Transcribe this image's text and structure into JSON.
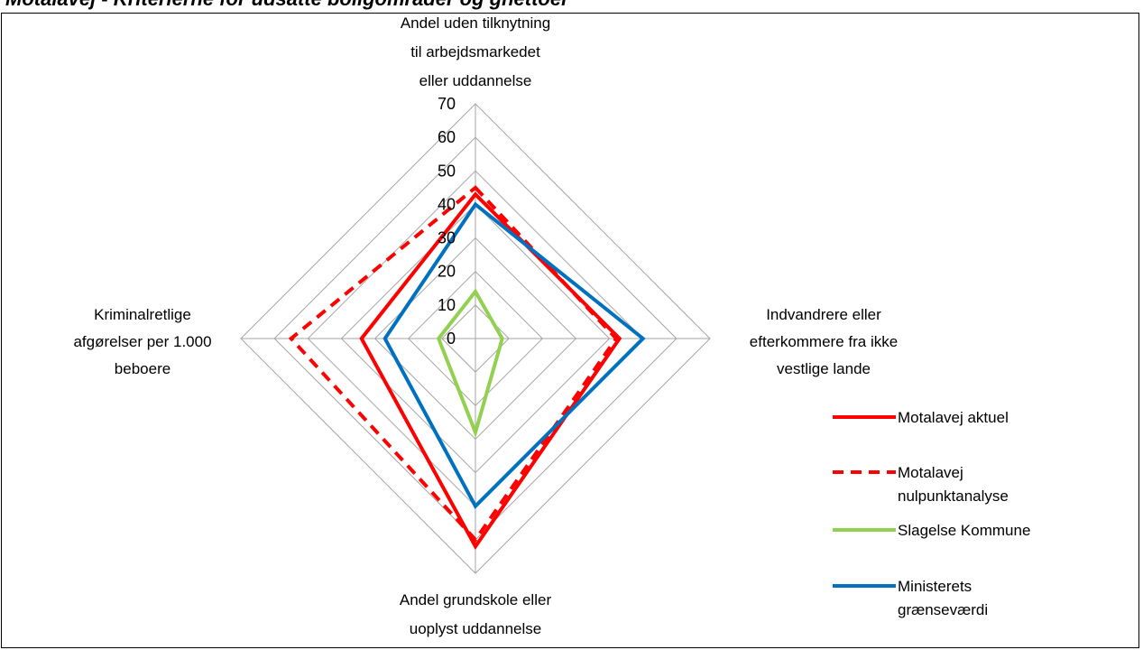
{
  "header": {
    "cut_title": "Motalavej - Kriterierne for udsatte boligområder og ghettoer"
  },
  "chart_data": {
    "type": "radar",
    "title": "",
    "axes": [
      {
        "lines": [
          "Andel uden tilknytning",
          "til arbejdsmarkedet",
          "eller uddannelse"
        ]
      },
      {
        "lines": [
          "Indvandrere eller",
          "efterkommere fra ikke",
          "vestlige lande"
        ]
      },
      {
        "lines": [
          "Andel grundskole eller",
          "uoplyst uddannelse"
        ]
      },
      {
        "lines": [
          "Kriminalretlige",
          "afgørelser per 1.000",
          "beboere"
        ]
      }
    ],
    "rmin": 0,
    "rmax": 70,
    "ticks": [
      0,
      10,
      20,
      30,
      40,
      50,
      60,
      70
    ],
    "grid": true,
    "legend_position": "right",
    "series": [
      {
        "name": "Motalavej aktuel",
        "values": [
          43,
          43,
          62,
          34
        ],
        "color": "#ff0000",
        "dash": "solid"
      },
      {
        "name": "Motalavej nulpunktanalyse",
        "values": [
          45,
          42,
          60,
          55
        ],
        "color": "#ff0000",
        "dash": "dashed"
      },
      {
        "name": "Slagelse Kommune",
        "values": [
          14,
          8,
          28,
          11
        ],
        "color": "#92d050",
        "dash": "solid"
      },
      {
        "name": "Ministerets grænseværdi",
        "values": [
          40,
          50,
          50,
          27
        ],
        "color": "#0070c0",
        "dash": "solid"
      }
    ]
  }
}
